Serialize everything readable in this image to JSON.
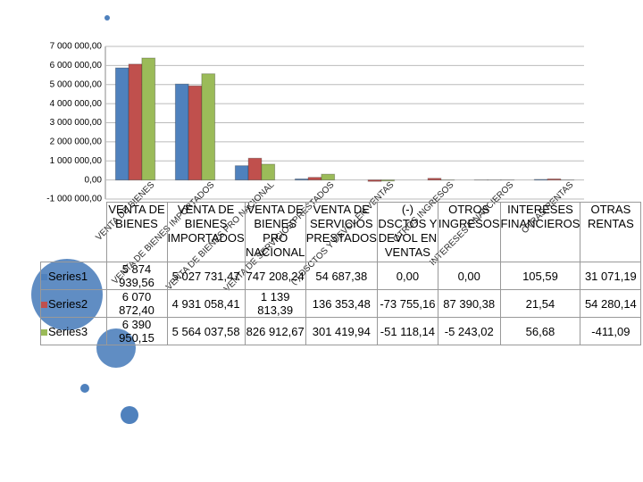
{
  "chart_data": {
    "type": "bar",
    "categories": [
      "VENTA DE BIENES",
      "VENTA DE BIENES IMPORTADOS",
      "VENTA DE BIENES PRO NACIONAL",
      "VENTA DE SERVICIOS PRESTADOS",
      "(-) DSCTOS Y DEVOL EN VENTAS",
      "OTROS INGRESOS",
      "INTERESES FINANCIEROS",
      "OTRAS RENTAS"
    ],
    "series": [
      {
        "name": "Series1",
        "color": "#4f81bd",
        "values": [
          5874939.56,
          5027731.47,
          747208.24,
          54687.38,
          0,
          0,
          105.59,
          31071.19
        ],
        "value_labels": [
          "5 874 939,56",
          "5 027 731,47",
          "747 208,24",
          "54 687,38",
          "0,00",
          "0,00",
          "105,59",
          "31 071,19"
        ]
      },
      {
        "name": "Series2",
        "color": "#c0504d",
        "values": [
          6070872.4,
          4931058.41,
          1139813.39,
          136353.48,
          -73755.16,
          87390.38,
          21.54,
          54280.14
        ],
        "value_labels": [
          "6 070 872,40",
          "4 931 058,41",
          "1 139 813,39",
          "136 353,48",
          "-73 755,16",
          "87 390,38",
          "21,54",
          "54 280,14"
        ]
      },
      {
        "name": "Series3",
        "color": "#9bbb59",
        "values": [
          6390950.15,
          5564037.58,
          826912.67,
          301419.94,
          -51118.14,
          -5243.02,
          56.68,
          -411.09
        ],
        "value_labels": [
          "6 390 950,15",
          "5 564 037,58",
          "826 912,67",
          "301 419,94",
          "-51 118,14",
          "-5 243,02",
          "56,68",
          "-411,09"
        ]
      }
    ],
    "ylim": [
      -1000000,
      7000000
    ],
    "yticks": [
      {
        "value": -1000000,
        "label": "-1 000 000,00"
      },
      {
        "value": 0,
        "label": "0,00"
      },
      {
        "value": 1000000,
        "label": "1 000 000,00"
      },
      {
        "value": 2000000,
        "label": "2 000 000,00"
      },
      {
        "value": 3000000,
        "label": "3 000 000,00"
      },
      {
        "value": 4000000,
        "label": "4 000 000,00"
      },
      {
        "value": 5000000,
        "label": "5 000 000,00"
      },
      {
        "value": 6000000,
        "label": "6 000 000,00"
      },
      {
        "value": 7000000,
        "label": "7 000 000,00"
      }
    ],
    "grid": true
  }
}
